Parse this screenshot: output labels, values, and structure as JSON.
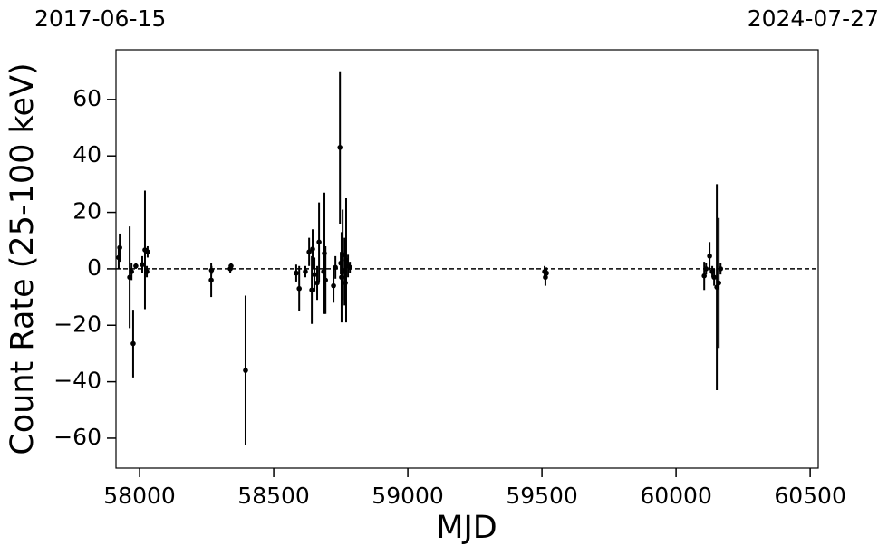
{
  "chart_data": {
    "type": "scatter",
    "top_labels": [
      "2017-06-15",
      "2024-07-27"
    ],
    "xlabel": "MJD",
    "ylabel": "Count Rate (25-100 keV)",
    "xlim": [
      57912,
      60530
    ],
    "ylim": [
      -70.6,
      77.6
    ],
    "xticks": [
      58000,
      58500,
      59000,
      59500,
      60000,
      60500
    ],
    "yticks": [
      {
        "value": -60,
        "label": "−60"
      },
      {
        "value": -40,
        "label": "−40"
      },
      {
        "value": -20,
        "label": "−20"
      },
      0,
      20,
      40,
      60
    ],
    "reference_line": 0,
    "color": "#000000",
    "x": [
      57922,
      57926,
      57963,
      57970,
      57976,
      57986,
      58010,
      58020,
      58027,
      58030,
      58267,
      58268,
      58338,
      58341,
      58395,
      58584,
      58595,
      58618,
      58632,
      58642,
      58645,
      58652,
      58662,
      58669,
      58686,
      58689,
      58693,
      58723,
      58730,
      58747,
      58750,
      58753,
      58757,
      58764,
      58767,
      58770,
      58777,
      58784,
      59510,
      59513,
      59517,
      60105,
      60112,
      60125,
      60135,
      60142,
      60152,
      60159,
      60166
    ],
    "values": [
      4,
      7.5,
      -3,
      -1,
      -26.5,
      1,
      1.5,
      6.7,
      -1,
      6,
      -4,
      -0.5,
      0,
      1,
      -36,
      -1.5,
      -7,
      -1,
      6,
      -7.5,
      7,
      -2,
      -5,
      9.5,
      -1,
      5.5,
      -4,
      -6,
      0.5,
      43,
      2,
      -3,
      5,
      -1,
      -5,
      3,
      1,
      0.5,
      -1,
      -3,
      -1.5,
      -2.5,
      0,
      4.5,
      -1,
      -3,
      -6.5,
      -5,
      0
    ],
    "errors": [
      4,
      5,
      18,
      3,
      12,
      1,
      3,
      21,
      2,
      2,
      6,
      1.5,
      1.5,
      1,
      26.5,
      3,
      8,
      2,
      5,
      12,
      7,
      6,
      6,
      14,
      6,
      21.5,
      12,
      6,
      4,
      27,
      4,
      16,
      16,
      12,
      5,
      22,
      4,
      2,
      2,
      3,
      2,
      5,
      2,
      5,
      2,
      3,
      36.5,
      23,
      2
    ]
  }
}
